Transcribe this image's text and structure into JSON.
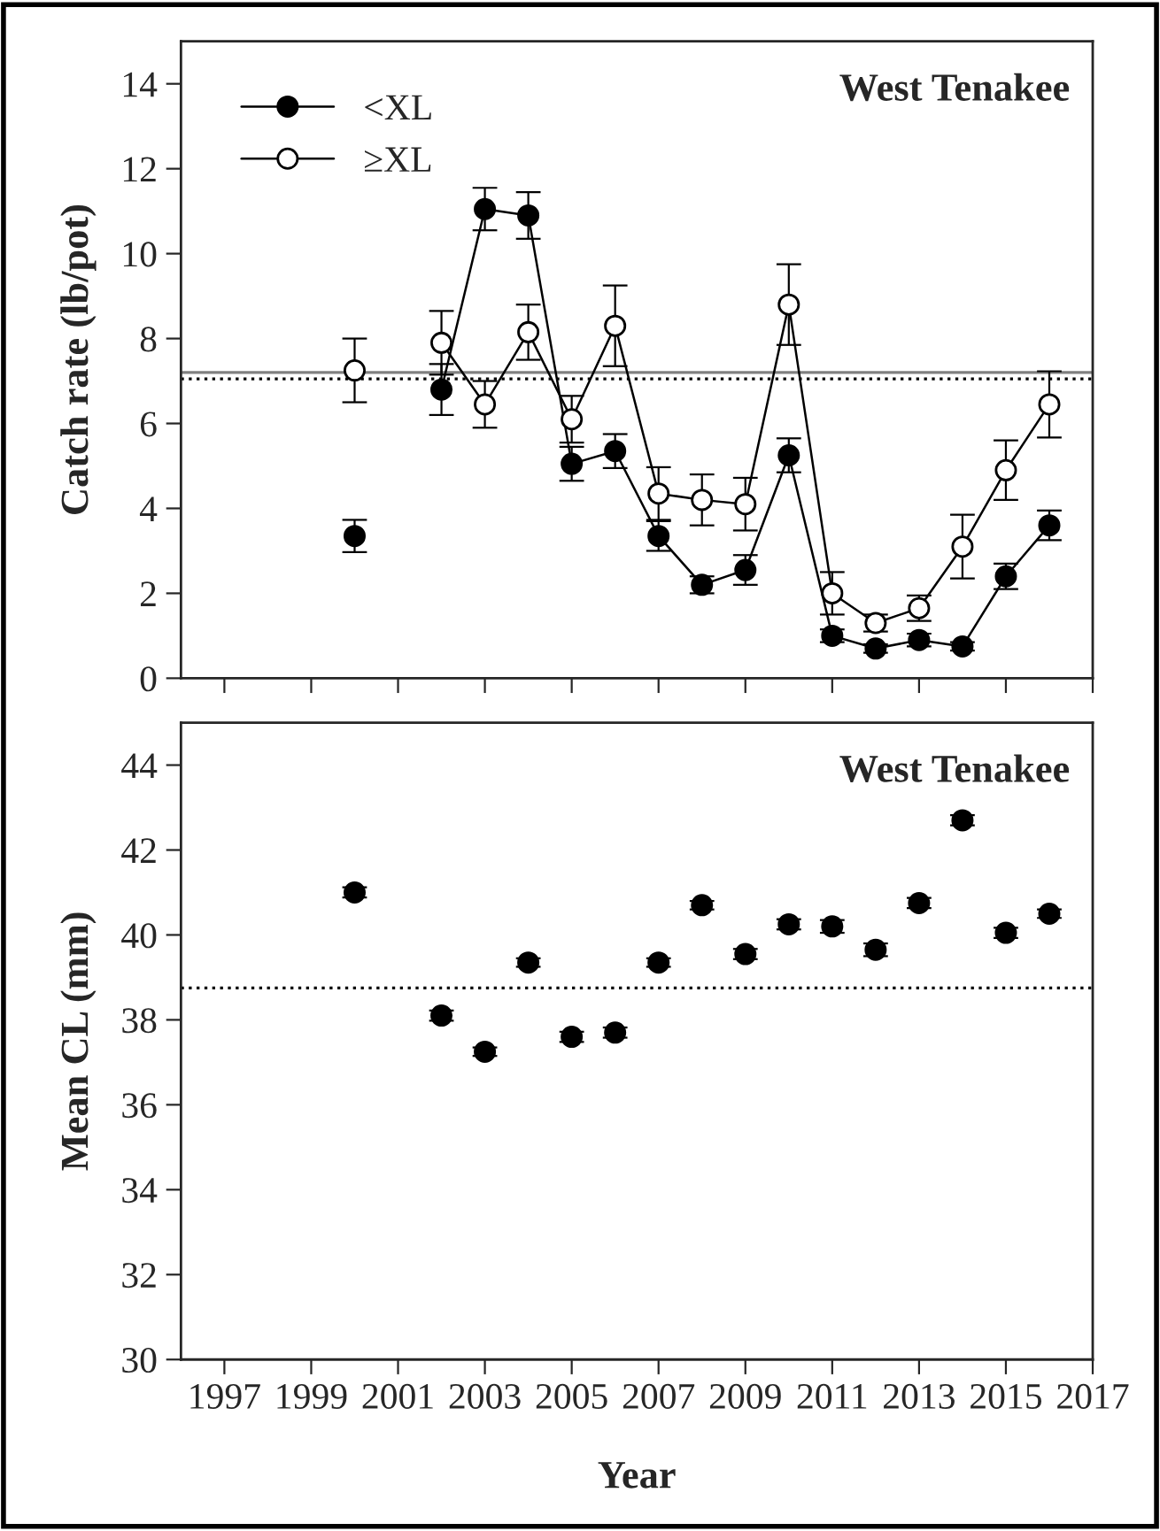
{
  "chart_data": [
    {
      "type": "line",
      "ylabel": "Catch rate (lb/pot)",
      "annotations": [
        "West Tenakee"
      ],
      "x": [
        2000,
        2001,
        2002,
        2003,
        2004,
        2005,
        2006,
        2007,
        2008,
        2009,
        2010,
        2011,
        2012,
        2013,
        2014,
        2015,
        2016
      ],
      "series": [
        {
          "name": "<XL",
          "color": "#000000",
          "values": [
            3.35,
            null,
            6.8,
            11.05,
            10.9,
            5.05,
            5.35,
            3.35,
            2.2,
            2.55,
            5.25,
            1.0,
            0.7,
            0.9,
            0.75,
            2.4,
            3.6
          ],
          "errors": [
            0.38,
            null,
            0.6,
            0.5,
            0.55,
            0.4,
            0.4,
            0.35,
            0.2,
            0.35,
            0.4,
            0.15,
            0.1,
            0.15,
            0.1,
            0.3,
            0.35
          ]
        },
        {
          "name": "≥XL",
          "color": "#ffffff",
          "values": [
            7.25,
            null,
            7.9,
            6.45,
            8.15,
            6.1,
            8.3,
            4.35,
            4.2,
            4.1,
            8.8,
            2.0,
            1.3,
            1.65,
            3.1,
            4.9,
            6.45
          ],
          "errors": [
            0.75,
            null,
            0.75,
            0.55,
            0.65,
            0.55,
            0.95,
            0.62,
            0.6,
            0.62,
            0.95,
            0.5,
            0.2,
            0.3,
            0.75,
            0.7,
            0.78
          ]
        }
      ],
      "xlim": [
        1996,
        2017
      ],
      "xticks": [
        1997,
        1999,
        2001,
        2003,
        2005,
        2007,
        2009,
        2011,
        2013,
        2015,
        2017
      ],
      "ylim": [
        0,
        15
      ],
      "yticks": [
        0,
        2,
        4,
        6,
        8,
        10,
        12,
        14
      ],
      "ref_lines": [
        {
          "axis": "y",
          "value": 7.2,
          "color": "#808080",
          "line_style": "solid"
        },
        {
          "axis": "y",
          "value": 7.05,
          "color": "#000000",
          "line_style": "dotted"
        }
      ],
      "marker": "circle",
      "line_style": "solid",
      "legend": "top left",
      "grid": false,
      "tick_labels": "y"
    },
    {
      "type": "scatter",
      "xlabel": "Year",
      "ylabel": "Mean CL (mm)",
      "annotations": [
        "West Tenakee"
      ],
      "x": [
        2000,
        2002,
        2003,
        2004,
        2005,
        2006,
        2007,
        2008,
        2009,
        2010,
        2011,
        2012,
        2013,
        2014,
        2015,
        2016
      ],
      "series": [
        {
          "color": "#000000",
          "values": [
            41.0,
            38.1,
            37.25,
            39.35,
            37.6,
            37.7,
            39.35,
            40.7,
            39.55,
            40.25,
            40.2,
            39.65,
            40.75,
            42.7,
            40.05,
            40.5
          ],
          "errors": [
            0.12,
            0.12,
            0.1,
            0.1,
            0.12,
            0.12,
            0.1,
            0.1,
            0.12,
            0.12,
            0.15,
            0.15,
            0.12,
            0.12,
            0.12,
            0.1
          ]
        }
      ],
      "xlim": [
        1996,
        2017
      ],
      "xticks": [
        1997,
        1999,
        2001,
        2003,
        2005,
        2007,
        2009,
        2011,
        2013,
        2015,
        2017
      ],
      "ylim": [
        30,
        45
      ],
      "yticks": [
        30,
        32,
        34,
        36,
        38,
        40,
        42,
        44
      ],
      "ref_lines": [
        {
          "axis": "y",
          "value": 38.75,
          "color": "#000000",
          "line_style": "dotted"
        }
      ],
      "marker": "circle",
      "legend": false,
      "grid": false
    }
  ]
}
